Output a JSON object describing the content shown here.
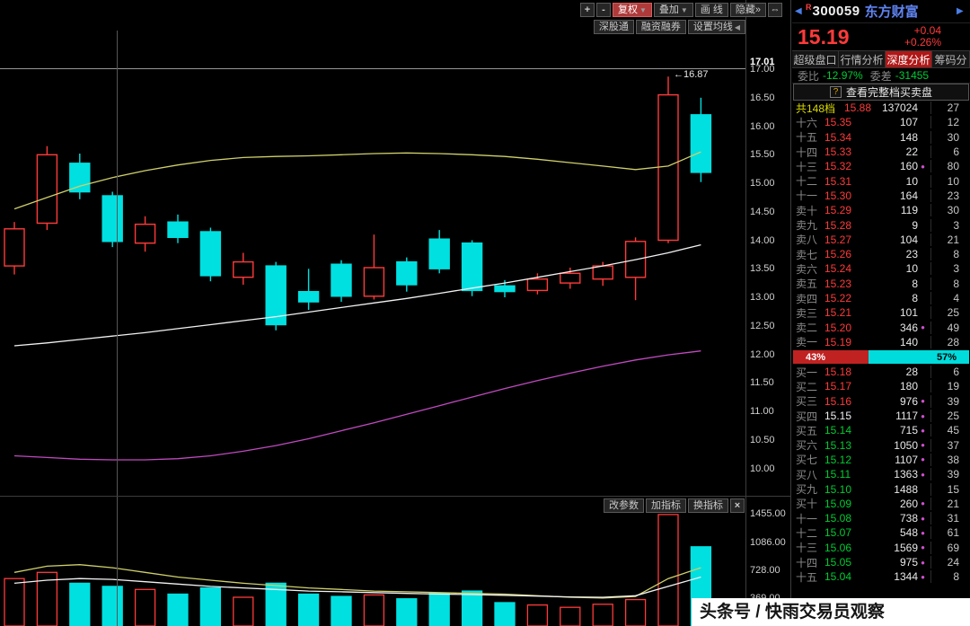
{
  "colors": {
    "up": "#ff3a3a",
    "down": "#00e0e0",
    "ma_white": "#f2f2f2",
    "ma_yellow": "#cfd06a",
    "ma_magenta": "#c04ac0",
    "ref_line": "#c8c8c8",
    "green": "#00cc33"
  },
  "icons": {
    "dropdown": "▼",
    "collapse": "◀",
    "nav_left": "◀",
    "nav_right": "▶",
    "close": "×",
    "help": "?",
    "dot": "●",
    "expand": "⇔"
  },
  "chart": {
    "toolbar": {
      "zoom_in": "+",
      "zoom_out": "-",
      "adjust": "复权",
      "overlay": "叠加",
      "draw": "画 线",
      "hide": "隐藏»",
      "expand": "⇔"
    },
    "toolbar2": {
      "shen": "深股通",
      "rzrq": "融资融券",
      "ma": "设置均线"
    },
    "price_axis": [
      "17.01",
      "17.00",
      "16.50",
      "16.00",
      "15.50",
      "15.00",
      "14.50",
      "14.00",
      "13.50",
      "13.00",
      "12.50",
      "12.00",
      "11.50",
      "11.00",
      "10.50",
      "10.00"
    ],
    "high_annotation": "←16.87"
  },
  "volume_pane": {
    "toolbar": {
      "param": "改参数",
      "add": "加指标",
      "change": "换指标",
      "close": "×"
    },
    "axis": [
      "1455.00",
      "1086.00",
      "728.00",
      "369.00"
    ]
  },
  "chart_data": {
    "type": "candlestick",
    "ref_line_price": 17.01,
    "high_label": "16.87",
    "candles": [
      {
        "o": 13.55,
        "c": 14.2,
        "h": 14.32,
        "l": 13.4,
        "v": 620
      },
      {
        "o": 14.3,
        "c": 15.5,
        "h": 15.65,
        "l": 14.18,
        "v": 700
      },
      {
        "o": 15.35,
        "c": 14.85,
        "h": 15.52,
        "l": 14.72,
        "v": 560
      },
      {
        "o": 14.78,
        "c": 13.98,
        "h": 14.85,
        "l": 13.88,
        "v": 520
      },
      {
        "o": 13.95,
        "c": 14.28,
        "h": 14.42,
        "l": 13.8,
        "v": 480
      },
      {
        "o": 14.32,
        "c": 14.05,
        "h": 14.45,
        "l": 13.95,
        "v": 420
      },
      {
        "o": 14.15,
        "c": 13.38,
        "h": 14.22,
        "l": 13.28,
        "v": 500
      },
      {
        "o": 13.35,
        "c": 13.62,
        "h": 13.78,
        "l": 13.22,
        "v": 380
      },
      {
        "o": 13.55,
        "c": 12.52,
        "h": 13.62,
        "l": 12.42,
        "v": 560
      },
      {
        "o": 13.1,
        "c": 12.92,
        "h": 13.5,
        "l": 12.78,
        "v": 420
      },
      {
        "o": 13.58,
        "c": 13.02,
        "h": 13.65,
        "l": 12.92,
        "v": 390
      },
      {
        "o": 13.02,
        "c": 13.52,
        "h": 14.1,
        "l": 12.96,
        "v": 410
      },
      {
        "o": 13.62,
        "c": 13.22,
        "h": 13.7,
        "l": 13.1,
        "v": 360
      },
      {
        "o": 14.02,
        "c": 13.5,
        "h": 14.18,
        "l": 13.42,
        "v": 430
      },
      {
        "o": 13.95,
        "c": 13.12,
        "h": 14.0,
        "l": 13.02,
        "v": 460
      },
      {
        "o": 13.2,
        "c": 13.1,
        "h": 13.3,
        "l": 13.0,
        "v": 310
      },
      {
        "o": 13.12,
        "c": 13.32,
        "h": 13.42,
        "l": 13.05,
        "v": 280
      },
      {
        "o": 13.25,
        "c": 13.42,
        "h": 13.52,
        "l": 13.15,
        "v": 250
      },
      {
        "o": 13.32,
        "c": 13.55,
        "h": 13.62,
        "l": 13.2,
        "v": 290
      },
      {
        "o": 13.35,
        "c": 13.98,
        "h": 14.05,
        "l": 12.95,
        "v": 350
      },
      {
        "o": 14.0,
        "c": 16.55,
        "h": 16.87,
        "l": 13.95,
        "v": 1445
      },
      {
        "o": 16.2,
        "c": 15.19,
        "h": 16.5,
        "l": 15.02,
        "v": 1030
      }
    ],
    "ma_white": [
      12.15,
      12.2,
      12.26,
      12.32,
      12.38,
      12.45,
      12.52,
      12.59,
      12.66,
      12.74,
      12.82,
      12.9,
      12.98,
      13.07,
      13.16,
      13.25,
      13.35,
      13.45,
      13.55,
      13.66,
      13.78,
      13.92
    ],
    "ma_yellow": [
      14.55,
      14.75,
      14.95,
      15.1,
      15.22,
      15.32,
      15.4,
      15.45,
      15.47,
      15.48,
      15.5,
      15.52,
      15.53,
      15.52,
      15.5,
      15.47,
      15.42,
      15.36,
      15.3,
      15.24,
      15.3,
      15.55
    ],
    "ma_magenta": [
      10.22,
      10.19,
      10.16,
      10.15,
      10.15,
      10.17,
      10.22,
      10.3,
      10.4,
      10.52,
      10.66,
      10.8,
      10.95,
      11.1,
      11.25,
      11.4,
      11.54,
      11.67,
      11.79,
      11.9,
      11.99,
      12.06
    ],
    "vol_ma_yellow": [
      700,
      780,
      800,
      760,
      700,
      640,
      600,
      560,
      530,
      500,
      480,
      460,
      450,
      440,
      430,
      420,
      400,
      380,
      370,
      390,
      620,
      760
    ],
    "vol_ma_white": [
      560,
      600,
      620,
      610,
      580,
      550,
      520,
      500,
      480,
      460,
      450,
      440,
      430,
      420,
      415,
      405,
      395,
      385,
      380,
      400,
      520,
      640
    ],
    "vol_axis_max": 1455,
    "vol_axis_min": 10,
    "price_axis_range": [
      10.0,
      17.01
    ]
  },
  "panel": {
    "margin_flag": "R",
    "code": "300059",
    "name": "东方财富",
    "price": "15.19",
    "change": "+0.04",
    "change_pct": "+0.26%",
    "tabs": [
      {
        "label": "超级盘口",
        "active": false
      },
      {
        "label": "行情分析",
        "active": false
      },
      {
        "label": "深度分析",
        "active": true
      },
      {
        "label": "筹码分",
        "active": false
      }
    ],
    "weibi_label": "委比",
    "weibi_value": "-12.97%",
    "weicha_label": "委差",
    "weicha_value": "-31455",
    "view_full_label": "查看完整档买卖盘",
    "sell_summary": {
      "label": "共148档",
      "price": "15.88",
      "volume": "137024",
      "count": "27"
    },
    "sell_levels": [
      {
        "label": "十六",
        "price": "15.35",
        "tone": "up",
        "volume": "107",
        "dot": false,
        "count": "12"
      },
      {
        "label": "十五",
        "price": "15.34",
        "tone": "up",
        "volume": "148",
        "dot": false,
        "count": "30"
      },
      {
        "label": "十四",
        "price": "15.33",
        "tone": "up",
        "volume": "22",
        "dot": false,
        "count": "6"
      },
      {
        "label": "十三",
        "price": "15.32",
        "tone": "up",
        "volume": "160",
        "dot": true,
        "count": "80"
      },
      {
        "label": "十二",
        "price": "15.31",
        "tone": "up",
        "volume": "10",
        "dot": false,
        "count": "10"
      },
      {
        "label": "十一",
        "price": "15.30",
        "tone": "up",
        "volume": "164",
        "dot": false,
        "count": "23"
      },
      {
        "label": "卖十",
        "price": "15.29",
        "tone": "up",
        "volume": "119",
        "dot": false,
        "count": "30"
      },
      {
        "label": "卖九",
        "price": "15.28",
        "tone": "up",
        "volume": "9",
        "dot": false,
        "count": "3"
      },
      {
        "label": "卖八",
        "price": "15.27",
        "tone": "up",
        "volume": "104",
        "dot": false,
        "count": "21"
      },
      {
        "label": "卖七",
        "price": "15.26",
        "tone": "up",
        "volume": "23",
        "dot": false,
        "count": "8"
      },
      {
        "label": "卖六",
        "price": "15.24",
        "tone": "up",
        "volume": "10",
        "dot": false,
        "count": "3"
      },
      {
        "label": "卖五",
        "price": "15.23",
        "tone": "up",
        "volume": "8",
        "dot": false,
        "count": "8"
      },
      {
        "label": "卖四",
        "price": "15.22",
        "tone": "up",
        "volume": "8",
        "dot": false,
        "count": "4"
      },
      {
        "label": "卖三",
        "price": "15.21",
        "tone": "up",
        "volume": "101",
        "dot": false,
        "count": "25"
      },
      {
        "label": "卖二",
        "price": "15.20",
        "tone": "up",
        "volume": "346",
        "dot": true,
        "count": "49"
      },
      {
        "label": "卖一",
        "price": "15.19",
        "tone": "up",
        "volume": "140",
        "dot": false,
        "count": "28"
      }
    ],
    "ratio": {
      "buy_pct": "43%",
      "sell_pct": "57%",
      "buy_width": 43
    },
    "buy_levels": [
      {
        "label": "买一",
        "price": "15.18",
        "tone": "up",
        "volume": "28",
        "dot": false,
        "count": "6"
      },
      {
        "label": "买二",
        "price": "15.17",
        "tone": "up",
        "volume": "180",
        "dot": false,
        "count": "19"
      },
      {
        "label": "买三",
        "price": "15.16",
        "tone": "up",
        "volume": "976",
        "dot": true,
        "count": "39"
      },
      {
        "label": "买四",
        "price": "15.15",
        "tone": "flat",
        "volume": "1117",
        "dot": true,
        "count": "25"
      },
      {
        "label": "买五",
        "price": "15.14",
        "tone": "down",
        "volume": "715",
        "dot": true,
        "count": "45"
      },
      {
        "label": "买六",
        "price": "15.13",
        "tone": "down",
        "volume": "1050",
        "dot": true,
        "count": "37"
      },
      {
        "label": "买七",
        "price": "15.12",
        "tone": "down",
        "volume": "1107",
        "dot": true,
        "count": "38"
      },
      {
        "label": "买八",
        "price": "15.11",
        "tone": "down",
        "volume": "1363",
        "dot": true,
        "count": "39"
      },
      {
        "label": "买九",
        "price": "15.10",
        "tone": "down",
        "volume": "1488",
        "dot": false,
        "count": "15"
      },
      {
        "label": "买十",
        "price": "15.09",
        "tone": "down",
        "volume": "260",
        "dot": true,
        "count": "21"
      },
      {
        "label": "十一",
        "price": "15.08",
        "tone": "down",
        "volume": "738",
        "dot": true,
        "count": "31"
      },
      {
        "label": "十二",
        "price": "15.07",
        "tone": "down",
        "volume": "548",
        "dot": true,
        "count": "61"
      },
      {
        "label": "十三",
        "price": "15.06",
        "tone": "down",
        "volume": "1569",
        "dot": true,
        "count": "69"
      },
      {
        "label": "十四",
        "price": "15.05",
        "tone": "down",
        "volume": "975",
        "dot": true,
        "count": "24"
      },
      {
        "label": "十五",
        "price": "15.04",
        "tone": "down",
        "volume": "1344",
        "dot": true,
        "count": "8"
      }
    ]
  },
  "watermark": "头条号 / 快雨交易员观察"
}
